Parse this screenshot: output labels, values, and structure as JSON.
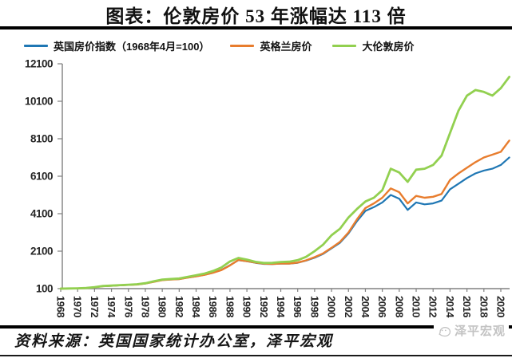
{
  "header": {
    "title": "图表：伦敦房价 53 年涨幅达 113 倍"
  },
  "footer": {
    "source": "资料来源：英国国家统计办公室，泽平宏观",
    "watermark": "泽平宏观",
    "watermark_icon": "wechat-logo",
    "watermark_color": "#c3c3c3"
  },
  "colors": {
    "uk_index": "#1F77B4",
    "england": "#E87D2E",
    "greater_london": "#92D050",
    "axis": "#808080",
    "tick_label": "#262626"
  },
  "chart_data": {
    "type": "line",
    "title": "图表：伦敦房价 53 年涨幅达 113 倍",
    "xlabel": "",
    "ylabel": "",
    "ylim": [
      100,
      12100
    ],
    "yticks": [
      100,
      2100,
      4100,
      6100,
      8100,
      10100,
      12100
    ],
    "xtick_years": [
      1968,
      1970,
      1972,
      1974,
      1976,
      1978,
      1980,
      1982,
      1984,
      1986,
      1988,
      1990,
      1992,
      1994,
      1996,
      1998,
      2000,
      2002,
      2004,
      2006,
      2008,
      2010,
      2012,
      2014,
      2016,
      2018,
      2020
    ],
    "grid": false,
    "legend_position": "top",
    "x": [
      1968,
      1969,
      1970,
      1971,
      1972,
      1973,
      1974,
      1975,
      1976,
      1977,
      1978,
      1979,
      1980,
      1981,
      1982,
      1983,
      1984,
      1985,
      1986,
      1987,
      1988,
      1989,
      1990,
      1991,
      1992,
      1993,
      1994,
      1995,
      1996,
      1997,
      1998,
      1999,
      2000,
      2001,
      2002,
      2003,
      2004,
      2005,
      2006,
      2007,
      2008,
      2009,
      2010,
      2011,
      2012,
      2013,
      2014,
      2015,
      2016,
      2017,
      2018,
      2019,
      2020,
      2021
    ],
    "series": [
      {
        "name": "英国房价指数（1968年4月=100）",
        "color": "#1F77B4",
        "values": [
          100,
          107,
          115,
          130,
          175,
          235,
          255,
          280,
          300,
          320,
          375,
          470,
          560,
          590,
          610,
          690,
          760,
          840,
          950,
          1100,
          1350,
          1620,
          1560,
          1480,
          1420,
          1410,
          1430,
          1430,
          1480,
          1600,
          1750,
          1950,
          2250,
          2550,
          3050,
          3700,
          4250,
          4450,
          4700,
          5100,
          4900,
          4300,
          4700,
          4600,
          4650,
          4800,
          5400,
          5700,
          6000,
          6250,
          6400,
          6500,
          6700,
          7100
        ]
      },
      {
        "name": "英格兰房价",
        "color": "#E87D2E",
        "values": [
          100,
          107,
          114,
          129,
          173,
          233,
          253,
          278,
          298,
          318,
          372,
          467,
          557,
          587,
          607,
          687,
          757,
          837,
          945,
          1090,
          1340,
          1630,
          1570,
          1490,
          1430,
          1420,
          1440,
          1440,
          1490,
          1610,
          1780,
          1980,
          2280,
          2600,
          3100,
          3800,
          4400,
          4650,
          4950,
          5450,
          5250,
          4650,
          5050,
          4950,
          5000,
          5150,
          5900,
          6250,
          6550,
          6850,
          7100,
          7250,
          7400,
          8000
        ]
      },
      {
        "name": "大伦敦房价",
        "color": "#92D050",
        "values": [
          100,
          108,
          117,
          133,
          180,
          240,
          262,
          288,
          310,
          332,
          390,
          490,
          585,
          615,
          640,
          730,
          810,
          905,
          1040,
          1230,
          1550,
          1740,
          1650,
          1530,
          1470,
          1480,
          1520,
          1540,
          1620,
          1800,
          2100,
          2450,
          2950,
          3300,
          3900,
          4350,
          4750,
          4950,
          5350,
          6500,
          6300,
          5800,
          6450,
          6500,
          6700,
          7200,
          8400,
          9600,
          10400,
          10700,
          10600,
          10400,
          10800,
          11400
        ]
      }
    ]
  }
}
